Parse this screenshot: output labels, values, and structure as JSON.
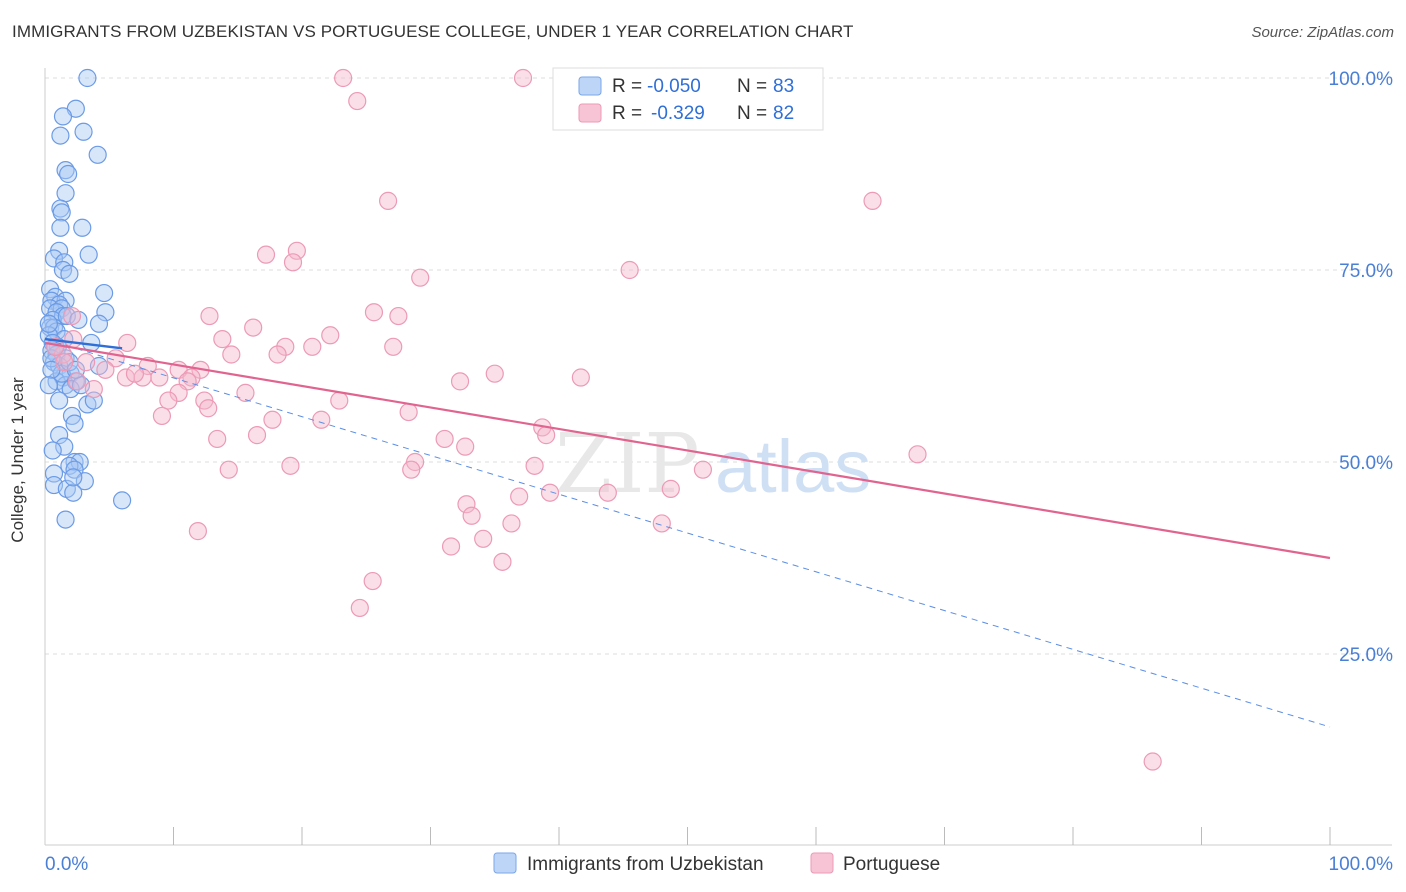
{
  "title": "IMMIGRANTS FROM UZBEKISTAN VS PORTUGUESE COLLEGE, UNDER 1 YEAR CORRELATION CHART",
  "source": "Source: ZipAtlas.com",
  "watermark": {
    "zip": "ZIP",
    "atlas": "atlas"
  },
  "colors": {
    "blue": "#5b8ee6",
    "blue_fill": "#a8c8f5",
    "blue_line": "#2f6fd6",
    "pink": "#e06090",
    "pink_fill": "#f5b8cc",
    "pink_line": "#e0648f",
    "axis_text": "#4a7fd6",
    "grid": "#dddddd"
  },
  "legend": {
    "rows": [
      {
        "r_label": "R =",
        "r_value": "-0.050",
        "n_label": "N =",
        "n_value": "83"
      },
      {
        "r_label": "R =",
        "r_value": "-0.329",
        "n_label": "N =",
        "n_value": "82"
      }
    ]
  },
  "chart_data": {
    "type": "scatter",
    "title": "IMMIGRANTS FROM UZBEKISTAN VS PORTUGUESE COLLEGE, UNDER 1 YEAR CORRELATION CHART",
    "xlabel": "",
    "ylabel": "College, Under 1 year",
    "xlim": [
      0,
      100
    ],
    "ylim": [
      0,
      105
    ],
    "x_tick_labels": [
      "0.0%",
      "100.0%"
    ],
    "y_ticks": [
      25,
      50,
      75,
      100
    ],
    "y_tick_labels": [
      "25.0%",
      "50.0%",
      "75.0%",
      "100.0%"
    ],
    "grid": true,
    "legend_position": "bottom-center",
    "series": [
      {
        "name": "Immigrants from Uzbekistan",
        "color": "#5b8ee6",
        "R": -0.05,
        "N": 83,
        "trend": {
          "x0": 0,
          "y0": 66.0,
          "x1": 6,
          "y1": 64.8,
          "solid": true
        },
        "trend_extended": {
          "x0": 0,
          "y0": 66.0,
          "x1": 100,
          "y1": 15.5,
          "dashed": true
        },
        "points": [
          [
            3.3,
            100
          ],
          [
            2.4,
            96
          ],
          [
            1.4,
            95
          ],
          [
            3.0,
            93
          ],
          [
            1.2,
            92.5
          ],
          [
            4.1,
            90
          ],
          [
            1.6,
            88
          ],
          [
            1.8,
            87.5
          ],
          [
            1.6,
            85
          ],
          [
            1.2,
            83
          ],
          [
            1.3,
            82.5
          ],
          [
            2.9,
            80.5
          ],
          [
            1.2,
            80.5
          ],
          [
            1.1,
            77.5
          ],
          [
            3.4,
            77
          ],
          [
            0.7,
            76.5
          ],
          [
            1.5,
            76
          ],
          [
            1.4,
            75
          ],
          [
            1.9,
            74.5
          ],
          [
            0.4,
            72.5
          ],
          [
            4.6,
            72
          ],
          [
            0.8,
            71.5
          ],
          [
            0.5,
            71
          ],
          [
            1.6,
            71
          ],
          [
            1.1,
            70.5
          ],
          [
            0.4,
            70
          ],
          [
            1.3,
            70
          ],
          [
            0.9,
            69.5
          ],
          [
            4.7,
            69.5
          ],
          [
            1.4,
            69
          ],
          [
            0.6,
            68.5
          ],
          [
            4.2,
            68
          ],
          [
            0.4,
            67.5
          ],
          [
            0.7,
            67.5
          ],
          [
            0.9,
            67
          ],
          [
            0.3,
            66.5
          ],
          [
            1.5,
            66
          ],
          [
            0.6,
            65.5
          ],
          [
            3.6,
            65.5
          ],
          [
            1.0,
            65
          ],
          [
            0.5,
            64.5
          ],
          [
            0.9,
            64
          ],
          [
            1.6,
            63.5
          ],
          [
            0.7,
            63
          ],
          [
            1.1,
            62.5
          ],
          [
            4.2,
            62.5
          ],
          [
            2.0,
            61.5
          ],
          [
            1.4,
            61
          ],
          [
            0.9,
            60.5
          ],
          [
            1.6,
            60
          ],
          [
            2.4,
            60.5
          ],
          [
            2.0,
            59.5
          ],
          [
            3.3,
            57.5
          ],
          [
            2.1,
            56
          ],
          [
            2.3,
            55
          ],
          [
            1.1,
            53.5
          ],
          [
            1.5,
            52
          ],
          [
            0.6,
            51.5
          ],
          [
            2.3,
            50
          ],
          [
            2.7,
            50
          ],
          [
            1.9,
            49.5
          ],
          [
            2.3,
            49
          ],
          [
            0.7,
            48.5
          ],
          [
            3.1,
            47.5
          ],
          [
            0.7,
            47
          ],
          [
            1.7,
            46.5
          ],
          [
            2.2,
            46
          ],
          [
            6.0,
            45
          ],
          [
            1.6,
            42.5
          ],
          [
            2.2,
            48
          ],
          [
            1.3,
            61.5
          ],
          [
            0.5,
            63.5
          ],
          [
            0.8,
            65
          ],
          [
            1.7,
            69
          ],
          [
            2.6,
            68.5
          ],
          [
            0.3,
            68
          ],
          [
            0.5,
            62
          ],
          [
            1.9,
            63
          ],
          [
            2.8,
            60
          ],
          [
            1.1,
            58
          ],
          [
            0.3,
            60
          ],
          [
            2.4,
            62
          ],
          [
            3.8,
            58
          ]
        ]
      },
      {
        "name": "Portuguese",
        "color": "#e06090",
        "R": -0.329,
        "N": 82,
        "trend": {
          "x0": 0,
          "y0": 65.5,
          "x1": 100,
          "y1": 37.5,
          "solid": true
        },
        "points": [
          [
            23.2,
            100
          ],
          [
            37.2,
            100
          ],
          [
            24.3,
            97
          ],
          [
            26.7,
            84
          ],
          [
            64.4,
            84
          ],
          [
            19.6,
            77.5
          ],
          [
            17.2,
            77
          ],
          [
            19.3,
            76
          ],
          [
            45.5,
            75
          ],
          [
            29.2,
            74
          ],
          [
            2.1,
            69
          ],
          [
            12.8,
            69
          ],
          [
            25.6,
            69.5
          ],
          [
            27.5,
            69
          ],
          [
            16.2,
            67.5
          ],
          [
            22.2,
            66.5
          ],
          [
            2.2,
            66
          ],
          [
            13.8,
            66
          ],
          [
            6.4,
            65.5
          ],
          [
            20.8,
            65
          ],
          [
            18.7,
            65
          ],
          [
            27.1,
            65
          ],
          [
            14.5,
            64
          ],
          [
            1.4,
            64
          ],
          [
            18.1,
            64
          ],
          [
            5.5,
            63.5
          ],
          [
            8.0,
            62.5
          ],
          [
            10.4,
            62
          ],
          [
            12.1,
            62
          ],
          [
            8.9,
            61
          ],
          [
            11.4,
            61
          ],
          [
            6.3,
            61
          ],
          [
            7.6,
            61
          ],
          [
            11.1,
            60.5
          ],
          [
            32.3,
            60.5
          ],
          [
            35.0,
            61.5
          ],
          [
            41.7,
            61
          ],
          [
            3.8,
            59.5
          ],
          [
            10.4,
            59
          ],
          [
            15.6,
            59
          ],
          [
            9.6,
            58
          ],
          [
            12.4,
            58
          ],
          [
            22.9,
            58
          ],
          [
            12.7,
            57
          ],
          [
            28.3,
            56.5
          ],
          [
            9.1,
            56
          ],
          [
            17.7,
            55.5
          ],
          [
            21.5,
            55.5
          ],
          [
            38.7,
            54.5
          ],
          [
            39.0,
            53.5
          ],
          [
            16.5,
            53.5
          ],
          [
            13.4,
            53
          ],
          [
            31.1,
            53
          ],
          [
            32.7,
            52
          ],
          [
            67.9,
            51
          ],
          [
            28.8,
            50
          ],
          [
            19.1,
            49.5
          ],
          [
            14.3,
            49
          ],
          [
            28.5,
            49
          ],
          [
            38.1,
            49.5
          ],
          [
            51.2,
            49
          ],
          [
            48.7,
            46.5
          ],
          [
            39.3,
            46
          ],
          [
            36.9,
            45.5
          ],
          [
            43.8,
            46
          ],
          [
            32.8,
            44.5
          ],
          [
            33.2,
            43
          ],
          [
            36.3,
            42
          ],
          [
            48.0,
            42
          ],
          [
            11.9,
            41
          ],
          [
            34.1,
            40
          ],
          [
            31.6,
            39
          ],
          [
            35.6,
            37
          ],
          [
            25.5,
            34.5
          ],
          [
            24.5,
            31
          ],
          [
            86.2,
            11
          ],
          [
            4.7,
            62
          ],
          [
            7.0,
            61.5
          ],
          [
            1.5,
            63
          ],
          [
            2.5,
            60.5
          ],
          [
            0.8,
            65
          ],
          [
            3.2,
            63
          ]
        ]
      }
    ]
  },
  "bottom_legend": {
    "items": [
      {
        "label": "Immigrants from Uzbekistan"
      },
      {
        "label": "Portuguese"
      }
    ]
  }
}
